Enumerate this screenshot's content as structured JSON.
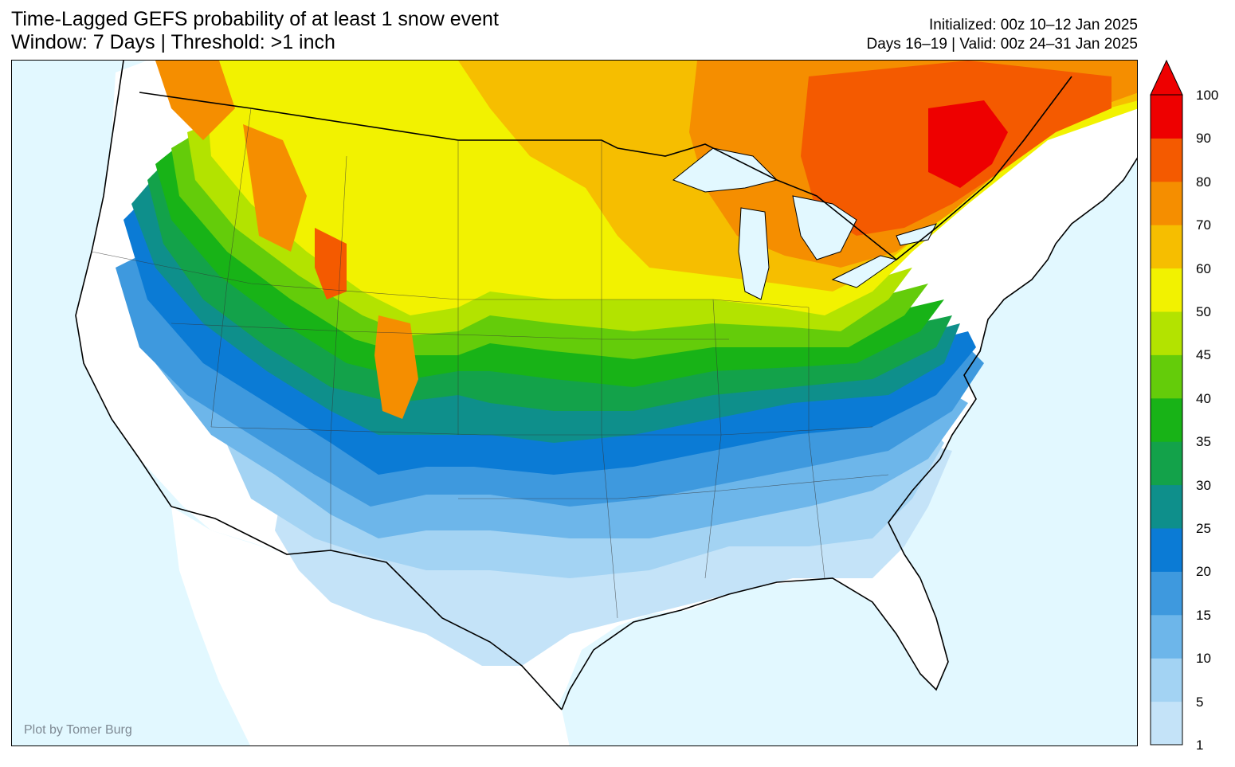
{
  "title": {
    "line1": "Time-Lagged GEFS probability of at least 1 snow event",
    "line2": "Window: 7 Days | Threshold: >1 inch"
  },
  "subtitle": {
    "initialized": "Initialized: 00z 10–12 Jan 2025",
    "valid": "Days 16–19 | Valid: 00z 24–31 Jan 2025"
  },
  "credit": "Plot by Tomer Burg",
  "colorbar": {
    "ticks": [
      "1",
      "5",
      "10",
      "15",
      "20",
      "25",
      "30",
      "35",
      "40",
      "45",
      "50",
      "60",
      "70",
      "80",
      "90",
      "100"
    ],
    "colors": [
      "#c4e3f8",
      "#a3d3f3",
      "#6db6ea",
      "#3e99de",
      "#0b7bd5",
      "#0e8f8b",
      "#13a24a",
      "#18b317",
      "#64cc0a",
      "#b3e300",
      "#f2f200",
      "#f6be00",
      "#f58e00",
      "#f45a00",
      "#ee0000"
    ],
    "extend": "max"
  },
  "colors": {
    "ocean": "#e2f8ff",
    "land_low": "#ffffff",
    "border": "#000000"
  }
}
